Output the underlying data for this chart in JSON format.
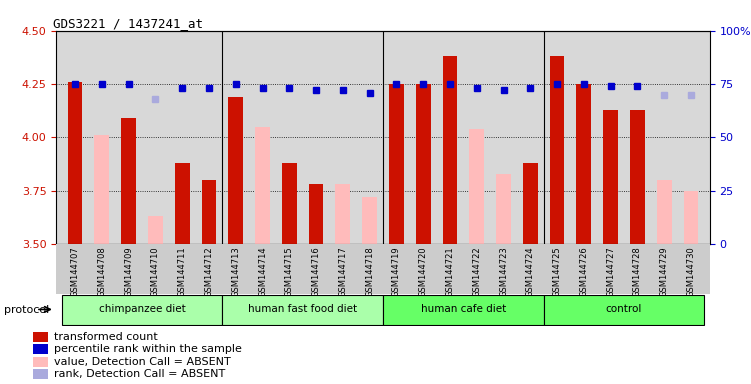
{
  "title": "GDS3221 / 1437241_at",
  "samples": [
    "GSM144707",
    "GSM144708",
    "GSM144709",
    "GSM144710",
    "GSM144711",
    "GSM144712",
    "GSM144713",
    "GSM144714",
    "GSM144715",
    "GSM144716",
    "GSM144717",
    "GSM144718",
    "GSM144719",
    "GSM144720",
    "GSM144721",
    "GSM144722",
    "GSM144723",
    "GSM144724",
    "GSM144725",
    "GSM144726",
    "GSM144727",
    "GSM144728",
    "GSM144729",
    "GSM144730"
  ],
  "transformed_count": [
    4.26,
    null,
    4.09,
    null,
    3.88,
    3.8,
    4.19,
    null,
    3.88,
    3.78,
    null,
    null,
    4.25,
    4.25,
    4.38,
    null,
    null,
    3.88,
    4.38,
    4.25,
    4.13,
    4.13,
    null,
    null
  ],
  "absent_value": [
    null,
    4.01,
    null,
    3.63,
    null,
    null,
    null,
    4.05,
    null,
    null,
    3.78,
    3.72,
    null,
    null,
    null,
    4.04,
    3.83,
    null,
    null,
    null,
    null,
    null,
    3.8,
    3.75
  ],
  "percentile_rank": [
    75,
    75,
    75,
    null,
    73,
    73,
    75,
    73,
    73,
    72,
    72,
    71,
    75,
    75,
    75,
    73,
    72,
    73,
    75,
    75,
    74,
    74,
    null,
    null
  ],
  "absent_rank": [
    null,
    null,
    null,
    68,
    null,
    null,
    null,
    null,
    null,
    null,
    null,
    null,
    null,
    null,
    null,
    null,
    null,
    null,
    null,
    null,
    null,
    null,
    70,
    70
  ],
  "groups": [
    {
      "label": "chimpanzee diet",
      "start": 0,
      "end": 6,
      "color": "#aaffaa"
    },
    {
      "label": "human fast food diet",
      "start": 6,
      "end": 12,
      "color": "#aaffaa"
    },
    {
      "label": "human cafe diet",
      "start": 12,
      "end": 18,
      "color": "#66ff66"
    },
    {
      "label": "control",
      "start": 18,
      "end": 24,
      "color": "#66ff66"
    }
  ],
  "ylim_left": [
    3.5,
    4.5
  ],
  "ylim_right": [
    0,
    100
  ],
  "yticks_left": [
    3.5,
    3.75,
    4.0,
    4.25,
    4.5
  ],
  "yticks_right": [
    0,
    25,
    50,
    75,
    100
  ],
  "bar_color": "#cc1100",
  "absent_bar_color": "#ffbbbb",
  "rank_color": "#0000cc",
  "absent_rank_color": "#aaaadd",
  "bg_color": "#d8d8d8",
  "ylabel_left_color": "#cc1100",
  "ylabel_right_color": "#0000cc"
}
